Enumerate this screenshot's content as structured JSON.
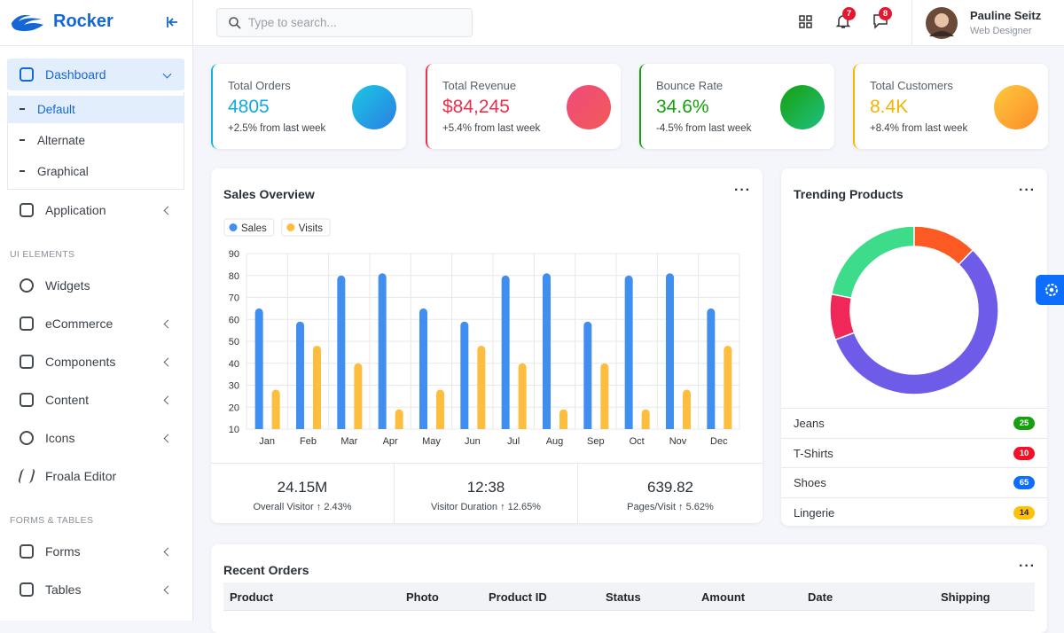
{
  "sidebar": {
    "brand": "Rocker",
    "menu": [
      "Dashboard",
      "Application",
      "Widgets",
      "eCommerce",
      "Components",
      "Content",
      "Icons",
      "Froala Editor",
      "Forms",
      "Tables"
    ],
    "dashboard_submenu": [
      "Default",
      "Alternate",
      "Graphical"
    ],
    "sections": [
      "UI ELEMENTS",
      "FORMS & TABLES"
    ]
  },
  "topbar": {
    "search_placeholder": "Type to search...",
    "notifications": 7,
    "messages": 8,
    "user": {
      "name": "Pauline Seitz",
      "role": "Web Designer"
    }
  },
  "stats": [
    {
      "title": "Total Orders",
      "value": "4805",
      "change": "+2.5% from last week"
    },
    {
      "title": "Total Revenue",
      "value": "$84,245",
      "change": "+5.4% from last week"
    },
    {
      "title": "Bounce Rate",
      "value": "34.6%",
      "change": "-4.5% from last week"
    },
    {
      "title": "Total Customers",
      "value": "8.4K",
      "change": "+8.4% from last week"
    }
  ],
  "chart_data": [
    {
      "type": "bar",
      "title": "Sales Overview",
      "categories": [
        "Jan",
        "Feb",
        "Mar",
        "Apr",
        "May",
        "Jun",
        "Jul",
        "Aug",
        "Sep",
        "Oct",
        "Nov",
        "Dec"
      ],
      "series": [
        {
          "name": "Sales",
          "color": "#3f8ef0",
          "values": [
            65,
            59,
            80,
            81,
            65,
            59,
            80,
            81,
            59,
            80,
            81,
            65
          ]
        },
        {
          "name": "Visits",
          "color": "#fdbd3e",
          "values": [
            28,
            48,
            40,
            19,
            28,
            48,
            40,
            19,
            40,
            19,
            28,
            48
          ]
        }
      ],
      "ylim": [
        10,
        90
      ],
      "yticks": [
        10,
        20,
        30,
        40,
        50,
        60,
        70,
        80,
        90
      ],
      "grid": true,
      "legend": "top-left"
    },
    {
      "type": "donut",
      "title": "Trending Products",
      "categories": [
        "Jeans",
        "T-Shirts",
        "Shoes",
        "Lingerie"
      ],
      "values": [
        25,
        10,
        65,
        14
      ],
      "colors": [
        "#3ddc8a",
        "#f0285a",
        "#6e5ce8",
        "#fc5a22"
      ]
    }
  ],
  "sales_summary": [
    {
      "value": "24.15M",
      "label": "Overall Visitor",
      "change": "2.43%"
    },
    {
      "value": "12:38",
      "label": "Visitor Duration",
      "change": "12.65%"
    },
    {
      "value": "639.82",
      "label": "Pages/Visit",
      "change": "5.62%"
    }
  ],
  "recent_orders": {
    "title": "Recent Orders",
    "columns": [
      "Product",
      "Photo",
      "Product ID",
      "Status",
      "Amount",
      "Date",
      "Shipping"
    ]
  }
}
